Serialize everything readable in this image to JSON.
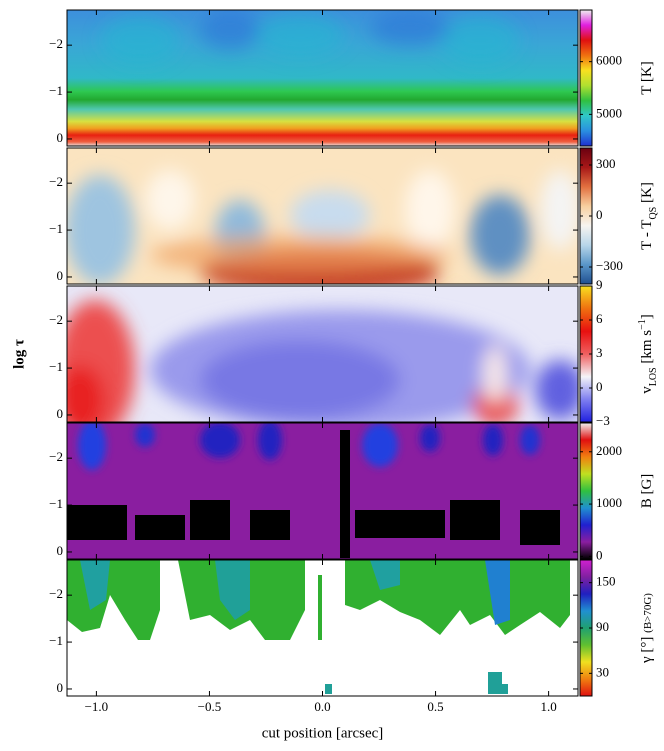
{
  "chart_data": [
    {
      "type": "heatmap",
      "xlim": [
        -1.13,
        1.13
      ],
      "ylim": [
        0.15,
        -2.75
      ],
      "xticks": [
        -1,
        -0.5,
        0,
        0.5,
        1
      ],
      "yticks": [
        {
          "value": -2,
          "label": "−2"
        },
        {
          "value": -1,
          "label": "−1"
        },
        0
      ],
      "colorbar": {
        "clim": [
          4400,
          6980
        ],
        "ticks": [
          5000,
          6000
        ],
        "colors": [
          "#1f2fd0",
          "#2a8fe0",
          "#30c8c8",
          "#30c040",
          "#b0e030",
          "#f8e020",
          "#f07010",
          "#e01010",
          "#e020e0",
          "#f0f0f0"
        ],
        "label_parts": [
          {
            "text": "T [K]"
          }
        ]
      }
    },
    {
      "type": "heatmap",
      "xlim": [
        -1.13,
        1.13
      ],
      "ylim": [
        0.15,
        -2.75
      ],
      "xticks": [
        -1,
        -0.5,
        0,
        0.5,
        1
      ],
      "yticks": [
        {
          "value": -2,
          "label": "−2"
        },
        {
          "value": -1,
          "label": "−1"
        },
        0
      ],
      "colorbar": {
        "clim": [
          -400,
          400
        ],
        "ticks": [
          300,
          0,
          {
            "value": -300,
            "label": "−300"
          }
        ],
        "colors": [
          "#1f4f90",
          "#5a96c8",
          "#b8d6ea",
          "#f7f4f0",
          "#f8d0a0",
          "#e27040",
          "#a81818",
          "#6a0010"
        ],
        "label_parts": [
          {
            "text": "T - T"
          },
          {
            "text": "QS",
            "shift": "sub"
          },
          {
            "text": " [K]"
          }
        ]
      }
    },
    {
      "type": "heatmap",
      "xlim": [
        -1.13,
        1.13
      ],
      "ylim": [
        0.15,
        -2.75
      ],
      "xticks": [
        -1,
        -0.5,
        0,
        0.5,
        1
      ],
      "yticks": [
        {
          "value": -2,
          "label": "−2"
        },
        {
          "value": -1,
          "label": "−1"
        },
        0
      ],
      "ylabel": "log τ",
      "colorbar": {
        "clim": [
          -3,
          9
        ],
        "ticks": [
          9,
          6,
          3,
          0,
          {
            "value": -3,
            "label": "−3"
          }
        ],
        "colors": [
          "#2020e0",
          "#8080f0",
          "#f4f4f8",
          "#f06060",
          "#e81010",
          "#f07010",
          "#f8e020"
        ],
        "label_parts": [
          {
            "text": "v"
          },
          {
            "text": "LOS",
            "shift": "sub"
          },
          {
            "text": " [km s"
          },
          {
            "text": "−1",
            "shift": "super"
          },
          {
            "text": "]"
          }
        ]
      }
    },
    {
      "type": "heatmap",
      "xlim": [
        -1.13,
        1.13
      ],
      "ylim": [
        0.15,
        -2.75
      ],
      "xticks": [
        -1,
        -0.5,
        0,
        0.5,
        1
      ],
      "yticks": [
        {
          "value": -2,
          "label": "−2"
        },
        {
          "value": -1,
          "label": "−1"
        },
        0
      ],
      "colorbar": {
        "clim": [
          -50,
          2550
        ],
        "ticks": [
          2000,
          1000,
          0
        ],
        "colors": [
          "#000000",
          "#8a1ea0",
          "#2020d0",
          "#2090d0",
          "#30c040",
          "#c0e020",
          "#f08010",
          "#e01010",
          "#f0f0f0"
        ],
        "label_parts": [
          {
            "text": "B [G]"
          }
        ]
      }
    },
    {
      "type": "heatmap",
      "xlim": [
        -1.13,
        1.13
      ],
      "ylim": [
        0.15,
        -2.75
      ],
      "xticks": [
        {
          "value": -1,
          "label": "−1.0"
        },
        {
          "value": -0.5,
          "label": "−0.5"
        },
        {
          "value": 0,
          "label": "0.0"
        },
        {
          "value": 0.5,
          "label": "0.5"
        },
        {
          "value": 1,
          "label": "1.0"
        }
      ],
      "yticks": [
        {
          "value": -2,
          "label": "−2"
        },
        {
          "value": -1,
          "label": "−1"
        },
        0
      ],
      "xlabel": "cut position [arcsec]",
      "colorbar": {
        "clim": [
          0,
          180
        ],
        "ticks": [
          150,
          90,
          30
        ],
        "colors": [
          "#e01010",
          "#f08010",
          "#f0e020",
          "#60c030",
          "#20a070",
          "#2090d0",
          "#2020c0",
          "#8020a0",
          "#d020d0"
        ],
        "label_parts": [
          {
            "text": "γ [°] "
          },
          {
            "text": "(B>70G)",
            "shift": "small"
          }
        ]
      }
    }
  ]
}
